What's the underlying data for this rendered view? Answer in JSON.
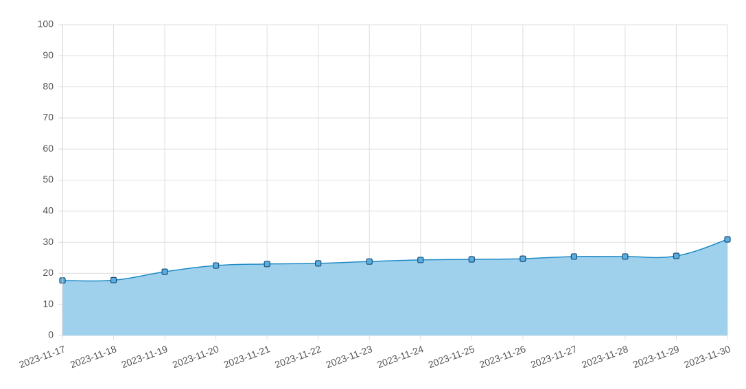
{
  "chart_data": {
    "type": "area",
    "categories": [
      "2023-11-17",
      "2023-11-18",
      "2023-11-19",
      "2023-11-20",
      "2023-11-21",
      "2023-11-22",
      "2023-11-23",
      "2023-11-24",
      "2023-11-25",
      "2023-11-26",
      "2023-11-27",
      "2023-11-28",
      "2023-11-29",
      "2023-11-30"
    ],
    "values": [
      17.7,
      17.8,
      20.5,
      22.5,
      23.0,
      23.2,
      23.8,
      24.3,
      24.5,
      24.7,
      25.4,
      25.4,
      25.6,
      30.9
    ],
    "color": "#1f8ac6",
    "fill_color": "#9bcfeb",
    "ylim": [
      0,
      100
    ],
    "yticks": [
      0,
      10,
      20,
      30,
      40,
      50,
      60,
      70,
      80,
      90,
      100
    ],
    "grid": true
  }
}
